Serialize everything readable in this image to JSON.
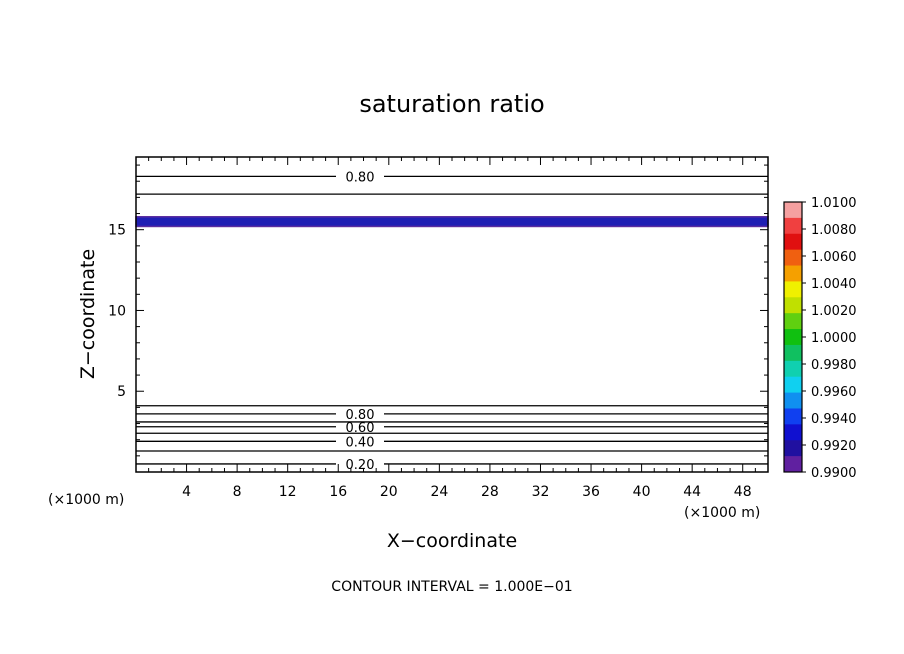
{
  "chart_data": {
    "type": "contour",
    "title": "saturation ratio",
    "xlabel": "X−coordinate",
    "ylabel": "Z−coordinate",
    "x_unit": "(×1000 m)",
    "y_unit": "(×1000 m)",
    "xlim": [
      0,
      50
    ],
    "ylim": [
      0,
      19.5
    ],
    "x_ticks": [
      "4",
      "8",
      "12",
      "16",
      "20",
      "24",
      "28",
      "32",
      "36",
      "40",
      "44",
      "48"
    ],
    "y_ticks": [
      "5",
      "10",
      "15"
    ],
    "contour_lines": [
      {
        "z": 18.3,
        "label": "0.80"
      },
      {
        "z": 17.2,
        "label": ""
      },
      {
        "z": 4.1,
        "label": ""
      },
      {
        "z": 3.6,
        "label": "0.80"
      },
      {
        "z": 3.1,
        "label": ""
      },
      {
        "z": 2.8,
        "label": "0.60"
      },
      {
        "z": 2.4,
        "label": ""
      },
      {
        "z": 1.9,
        "label": "0.40"
      },
      {
        "z": 1.3,
        "label": ""
      },
      {
        "z": 0.5,
        "label": "0.20"
      }
    ],
    "shaded_band": {
      "z_min": 15.2,
      "z_max": 15.8,
      "color": "#1f1fb4",
      "outline": "#5a2ca0"
    },
    "colorbar": {
      "labels": [
        "1.0100",
        "1.0080",
        "1.0060",
        "1.0040",
        "1.0020",
        "1.0000",
        "0.9980",
        "0.9960",
        "0.9940",
        "0.9920",
        "0.9900"
      ],
      "colors": [
        "#f5a0a0",
        "#f04040",
        "#e01010",
        "#f06010",
        "#f5a000",
        "#f0f000",
        "#c0e000",
        "#60d010",
        "#10c010",
        "#10c060",
        "#10d0b0",
        "#10d0f0",
        "#1090f0",
        "#1040f0",
        "#1010d0",
        "#2010a0",
        "#6020a0"
      ]
    },
    "note": "CONTOUR INTERVAL = 1.000E−01"
  }
}
